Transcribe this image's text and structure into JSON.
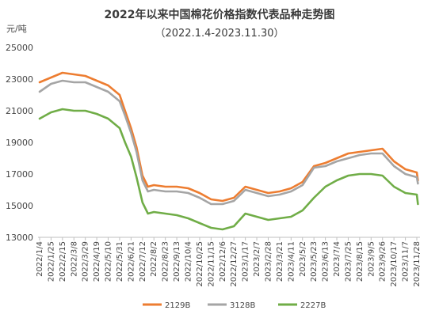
{
  "chart_data": {
    "type": "line",
    "title": "2022年以来中国棉花价格指数代表品种走势图",
    "subtitle": "（2022.1.4-2023.11.30）",
    "ylabel": "元/吨",
    "xlabel": "",
    "ylim": [
      13000,
      25000
    ],
    "yticks": [
      13000,
      15000,
      17000,
      19000,
      21000,
      23000,
      25000
    ],
    "grid": false,
    "legend_position": "bottom",
    "x_tick_labels": [
      "2022/1/4",
      "2022/1/25",
      "2022/2/15",
      "2022/3/8",
      "2022/3/29",
      "2022/4/19",
      "2022/5/10",
      "2022/5/31",
      "2022/6/21",
      "2022/7/12",
      "2022/8/2",
      "2022/8/23",
      "2022/9/13",
      "2022/10/4",
      "2022/10/25",
      "2022/11/15",
      "2022/12/6",
      "2022/12/27",
      "2023/1/17",
      "2023/2/7",
      "2023/2/28",
      "2023/3/21",
      "2023/4/11",
      "2023/5/2",
      "2023/5/23",
      "2023/6/13",
      "2023/7/4",
      "2023/7/25",
      "2023/8/15",
      "2023/9/5",
      "2023/9/26",
      "2023/10/17",
      "2023/11/7",
      "2023/11/28"
    ],
    "x": [
      "2022/1/4",
      "2022/1/25",
      "2022/2/15",
      "2022/3/8",
      "2022/3/29",
      "2022/4/19",
      "2022/5/10",
      "2022/5/31",
      "2022/6/10",
      "2022/6/21",
      "2022/7/1",
      "2022/7/12",
      "2022/7/22",
      "2022/8/2",
      "2022/8/23",
      "2022/9/13",
      "2022/10/4",
      "2022/10/25",
      "2022/11/15",
      "2022/12/6",
      "2022/12/27",
      "2023/1/17",
      "2023/2/7",
      "2023/2/28",
      "2023/3/21",
      "2023/4/11",
      "2023/5/2",
      "2023/5/23",
      "2023/6/13",
      "2023/7/4",
      "2023/7/25",
      "2023/8/15",
      "2023/9/5",
      "2023/9/26",
      "2023/10/17",
      "2023/11/7",
      "2023/11/28",
      "2023/11/30"
    ],
    "series": [
      {
        "name": "2129B",
        "color": "#ED7D31",
        "values": [
          22800,
          23100,
          23400,
          23300,
          23200,
          22900,
          22600,
          22000,
          21000,
          19900,
          18700,
          16900,
          16200,
          16300,
          16200,
          16200,
          16100,
          15800,
          15400,
          15300,
          15500,
          16200,
          16000,
          15800,
          15900,
          16100,
          16500,
          17500,
          17700,
          18000,
          18300,
          18400,
          18500,
          18600,
          17800,
          17300,
          17100,
          16600
        ]
      },
      {
        "name": "3128B",
        "color": "#A5A5A5",
        "values": [
          22200,
          22700,
          22900,
          22800,
          22800,
          22500,
          22200,
          21600,
          20700,
          19600,
          18400,
          16600,
          15900,
          16000,
          15900,
          15900,
          15800,
          15500,
          15100,
          15100,
          15300,
          16000,
          15800,
          15600,
          15700,
          15900,
          16300,
          17400,
          17500,
          17800,
          18000,
          18200,
          18300,
          18300,
          17500,
          17000,
          16800,
          16400
        ]
      },
      {
        "name": "2227B",
        "color": "#70AD47",
        "values": [
          20500,
          20900,
          21100,
          21000,
          21000,
          20800,
          20500,
          19900,
          19000,
          18100,
          16800,
          15200,
          14500,
          14600,
          14500,
          14400,
          14200,
          13900,
          13600,
          13500,
          13700,
          14500,
          14300,
          14100,
          14200,
          14300,
          14700,
          15500,
          16200,
          16600,
          16900,
          17000,
          17000,
          16900,
          16200,
          15800,
          15700,
          15100
        ]
      }
    ]
  }
}
